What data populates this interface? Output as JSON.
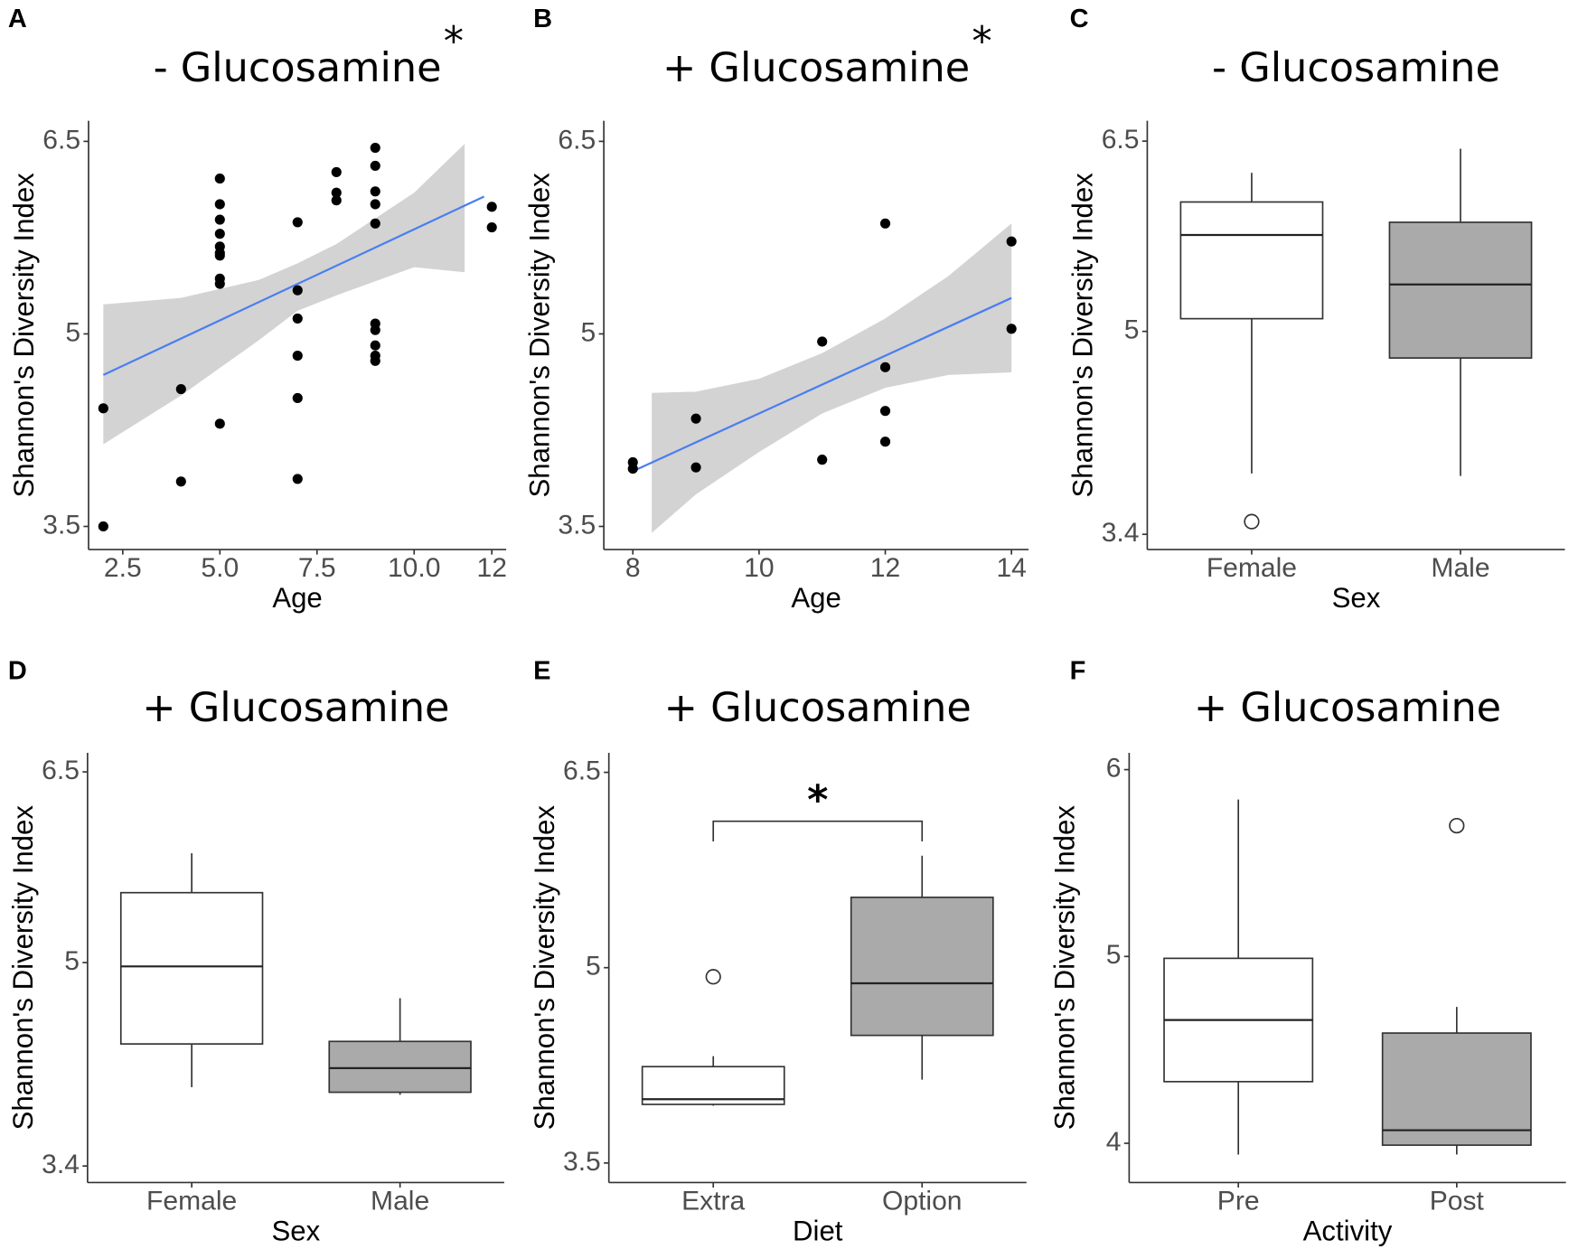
{
  "chart_data": [
    {
      "type": "scatter",
      "panel": "A",
      "title": "- Glucosamine",
      "title_mark": "*",
      "x_label": "Age",
      "y_label": "Shannon's Diversity Index",
      "x": [
        2,
        2,
        4,
        4,
        5,
        5,
        5,
        5,
        5,
        5,
        5,
        5,
        5,
        5,
        7,
        7,
        7,
        7,
        7,
        7,
        8,
        8,
        8,
        9,
        9,
        9,
        9,
        9,
        9,
        9,
        9,
        9,
        9,
        12,
        12
      ],
      "y": [
        4.42,
        3.5,
        4.57,
        3.85,
        6.21,
        6.01,
        5.89,
        5.78,
        5.68,
        5.63,
        5.61,
        5.43,
        5.39,
        4.3,
        5.87,
        5.34,
        5.12,
        4.83,
        4.5,
        3.87,
        6.26,
        6.1,
        6.04,
        6.45,
        6.31,
        6.11,
        6.01,
        5.86,
        5.08,
        5.03,
        4.91,
        4.83,
        4.79,
        5.99,
        5.83
      ],
      "color": "#000000",
      "fit": {
        "x": [
          2,
          11.8
        ],
        "y": [
          4.68,
          6.07
        ],
        "color": "#4a7ef0"
      },
      "band": {
        "x": [
          2,
          4,
          6,
          7,
          8,
          10,
          11.3
        ],
        "upper": [
          5.23,
          5.28,
          5.42,
          5.55,
          5.7,
          6.1,
          6.48
        ],
        "lower": [
          4.14,
          4.52,
          4.95,
          5.18,
          5.3,
          5.52,
          5.48
        ],
        "color": "#d3d3d3"
      },
      "xlim": [
        1.62,
        12.37
      ],
      "ylim": [
        3.32,
        6.66
      ],
      "xticks": [
        2.5,
        {
          "value": 5,
          "label": "5.0"
        },
        7.5,
        {
          "value": 10,
          "label": "10.0"
        },
        12
      ],
      "yticks": [
        3.5,
        5,
        6.5
      ]
    },
    {
      "type": "scatter",
      "panel": "B",
      "title": "+ Glucosamine",
      "title_mark": "*",
      "x_label": "Age",
      "y_label": "Shannon's Diversity Index",
      "x": [
        8,
        8,
        9,
        9,
        11,
        11,
        12,
        12,
        12,
        12,
        14,
        14
      ],
      "y": [
        4.0,
        3.95,
        4.34,
        3.96,
        4.94,
        4.02,
        5.86,
        4.74,
        4.4,
        4.16,
        5.72,
        5.04
      ],
      "color": "#000000",
      "fit": {
        "x": [
          8,
          14
        ],
        "y": [
          3.93,
          5.28
        ],
        "color": "#4a7ef0"
      },
      "band": {
        "x": [
          8.3,
          9,
          10,
          11,
          12,
          13,
          14
        ],
        "upper": [
          4.54,
          4.55,
          4.65,
          4.85,
          5.12,
          5.45,
          5.86
        ],
        "lower": [
          3.45,
          3.75,
          4.08,
          4.38,
          4.58,
          4.68,
          4.7
        ],
        "color": "#d3d3d3"
      },
      "xlim": [
        7.54,
        14.27
      ],
      "ylim": [
        3.32,
        6.66
      ],
      "xticks": [
        8,
        10,
        12,
        14
      ],
      "yticks": [
        3.5,
        5,
        6.5
      ]
    },
    {
      "type": "box",
      "panel": "C",
      "title": "- Glucosamine",
      "x_label": "Sex",
      "y_label": "Shannon's Diversity Index",
      "categories": [
        "Female",
        "Male"
      ],
      "boxes": [
        {
          "whisker_low": 3.88,
          "q1": 5.1,
          "median": 5.76,
          "q3": 6.02,
          "whisker_high": 6.25,
          "outliers": [
            3.5
          ],
          "color": "#ffffff"
        },
        {
          "whisker_low": 3.86,
          "q1": 4.79,
          "median": 5.37,
          "q3": 5.86,
          "whisker_high": 6.44,
          "outliers": [],
          "color": "#aaaaaa"
        }
      ],
      "ylim": [
        3.28,
        6.66
      ],
      "yticks": [
        3.4,
        5,
        6.5
      ]
    },
    {
      "type": "box",
      "panel": "D",
      "title": "+ Glucosamine",
      "x_label": "Sex",
      "y_label": "Shannon's Diversity Index",
      "categories": [
        "Female",
        "Male"
      ],
      "boxes": [
        {
          "whisker_low": 4.02,
          "q1": 4.36,
          "median": 4.97,
          "q3": 5.55,
          "whisker_high": 5.86,
          "outliers": [],
          "color": "#ffffff"
        },
        {
          "whisker_low": 3.96,
          "q1": 3.98,
          "median": 4.17,
          "q3": 4.38,
          "whisker_high": 4.72,
          "outliers": [],
          "color": "#aaaaaa"
        }
      ],
      "ylim": [
        3.27,
        6.65
      ],
      "yticks": [
        3.4,
        5,
        6.5
      ]
    },
    {
      "type": "box",
      "panel": "E",
      "title": "+ Glucosamine",
      "x_label": "Diet",
      "y_label": "Shannon's Diversity Index",
      "annotation": "*",
      "categories": [
        "Extra",
        "Option"
      ],
      "boxes": [
        {
          "whisker_low": 3.94,
          "q1": 3.95,
          "median": 3.99,
          "q3": 4.24,
          "whisker_high": 4.32,
          "outliers": [
            4.93
          ],
          "color": "#ffffff"
        },
        {
          "whisker_low": 4.14,
          "q1": 4.48,
          "median": 4.88,
          "q3": 5.54,
          "whisker_high": 5.86,
          "outliers": [],
          "color": "#aaaaaa"
        }
      ],
      "ylim": [
        3.35,
        6.65
      ],
      "yticks": [
        3.5,
        5,
        6.5
      ]
    },
    {
      "type": "box",
      "panel": "F",
      "title": "+ Glucosamine",
      "x_label": "Activity",
      "y_label": "Shannon's Diversity Index",
      "categories": [
        "Pre",
        "Post"
      ],
      "boxes": [
        {
          "whisker_low": 3.94,
          "q1": 4.33,
          "median": 4.66,
          "q3": 4.99,
          "whisker_high": 5.84,
          "outliers": [],
          "color": "#ffffff"
        },
        {
          "whisker_low": 3.94,
          "q1": 3.99,
          "median": 4.07,
          "q3": 4.59,
          "whisker_high": 4.73,
          "outliers": [
            5.7
          ],
          "color": "#aaaaaa"
        }
      ],
      "ylim": [
        3.79,
        6.09
      ],
      "yticks": [
        4,
        5,
        6
      ]
    }
  ]
}
